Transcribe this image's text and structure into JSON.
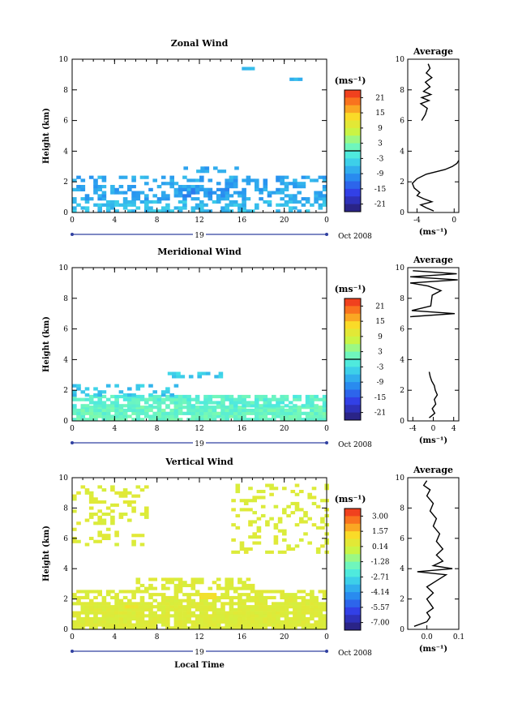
{
  "figure": {
    "xlabel": "Local Time",
    "date_label": "Oct 2008",
    "day_label": "19"
  },
  "chart_data": [
    {
      "type": "heatmap",
      "title": "Zonal Wind",
      "ylabel": "Height (km)",
      "xticks": [
        "0",
        "4",
        "8",
        "12",
        "16",
        "20",
        "0"
      ],
      "yticks": [
        "0",
        "2",
        "4",
        "6",
        "8",
        "10"
      ],
      "xlim": [
        0,
        24
      ],
      "ylim": [
        0,
        10
      ],
      "colorbar": {
        "unit": "(ms⁻¹)",
        "ticks": [
          "21",
          "15",
          "9",
          "3",
          "-3",
          "-9",
          "-15",
          "-21"
        ],
        "range": [
          -24,
          24
        ],
        "zero_line": true
      },
      "cells": [
        {
          "t0": 0,
          "t1": 24,
          "h0": 0.0,
          "h1": 0.8,
          "value": -6,
          "coverage": 0.55
        },
        {
          "t0": 0,
          "t1": 24,
          "h0": 0.8,
          "h1": 2.3,
          "value": -8,
          "coverage": 0.45
        },
        {
          "t0": 10.5,
          "t1": 15.5,
          "h0": 2.6,
          "h1": 3.0,
          "value": -8,
          "coverage": 0.6
        },
        {
          "t0": 10,
          "t1": 14.5,
          "h0": 1.0,
          "h1": 1.6,
          "value": -10,
          "coverage": 0.6
        },
        {
          "t0": 16,
          "t1": 17,
          "h0": 9.3,
          "h1": 9.5,
          "value": -6,
          "coverage": 1.0
        },
        {
          "t0": 20.5,
          "t1": 21.5,
          "h0": 8.6,
          "h1": 8.8,
          "value": -6,
          "coverage": 1.0
        }
      ],
      "average": {
        "title": "Average",
        "xlabel": "(ms⁻¹)",
        "xticks": [
          "-4",
          "0"
        ],
        "xlim": [
          -5,
          0.5
        ],
        "yticks": [
          "0",
          "2",
          "4",
          "6",
          "8",
          "10"
        ],
        "profile": [
          {
            "h": 0.1,
            "v": -2.2
          },
          {
            "h": 0.3,
            "v": -3.0
          },
          {
            "h": 0.5,
            "v": -3.6
          },
          {
            "h": 0.7,
            "v": -2.4
          },
          {
            "h": 0.9,
            "v": -3.3
          },
          {
            "h": 1.1,
            "v": -4.0
          },
          {
            "h": 1.3,
            "v": -3.7
          },
          {
            "h": 1.6,
            "v": -4.3
          },
          {
            "h": 1.9,
            "v": -4.5
          },
          {
            "h": 2.2,
            "v": -4.0
          },
          {
            "h": 2.5,
            "v": -3.0
          },
          {
            "h": 2.8,
            "v": -1.0
          },
          {
            "h": 3.0,
            "v": -0.2
          },
          {
            "h": 3.2,
            "v": 0.3
          },
          {
            "h": 3.4,
            "v": 0.5
          }
        ],
        "profile_upper": [
          {
            "h": 6.0,
            "v": -3.5
          },
          {
            "h": 6.4,
            "v": -3.1
          },
          {
            "h": 6.8,
            "v": -2.9
          },
          {
            "h": 7.1,
            "v": -3.6
          },
          {
            "h": 7.3,
            "v": -2.7
          },
          {
            "h": 7.5,
            "v": -3.5
          },
          {
            "h": 7.7,
            "v": -2.5
          },
          {
            "h": 7.9,
            "v": -3.3
          },
          {
            "h": 8.2,
            "v": -2.6
          },
          {
            "h": 8.5,
            "v": -3.1
          },
          {
            "h": 8.8,
            "v": -2.4
          },
          {
            "h": 9.1,
            "v": -3.0
          },
          {
            "h": 9.4,
            "v": -2.6
          },
          {
            "h": 9.7,
            "v": -2.8
          }
        ]
      }
    },
    {
      "type": "heatmap",
      "title": "Meridional Wind",
      "ylabel": "Height (km)",
      "xticks": [
        "0",
        "4",
        "8",
        "12",
        "16",
        "20",
        "0"
      ],
      "yticks": [
        "0",
        "2",
        "4",
        "6",
        "8",
        "10"
      ],
      "xlim": [
        0,
        24
      ],
      "ylim": [
        0,
        10
      ],
      "colorbar": {
        "unit": "(ms⁻¹)",
        "ticks": [
          "21",
          "15",
          "9",
          "3",
          "-3",
          "-9",
          "-15",
          "-21"
        ],
        "range": [
          -24,
          24
        ],
        "zero_line": true
      },
      "cells": [
        {
          "t0": 0,
          "t1": 24,
          "h0": 0.0,
          "h1": 0.9,
          "value": 1,
          "coverage": 0.9
        },
        {
          "t0": 0,
          "t1": 24,
          "h0": 0.9,
          "h1": 1.6,
          "value": 0,
          "coverage": 0.75
        },
        {
          "t0": 0,
          "t1": 10,
          "h0": 1.6,
          "h1": 2.4,
          "value": -5,
          "coverage": 0.3
        },
        {
          "t0": 9,
          "t1": 15,
          "h0": 2.8,
          "h1": 3.2,
          "value": -5,
          "coverage": 0.5
        }
      ],
      "average": {
        "title": "Average",
        "xlabel": "(ms⁻¹)",
        "xticks": [
          "-4",
          "0",
          "4"
        ],
        "xlim": [
          -5,
          5
        ],
        "yticks": [
          "0",
          "2",
          "4",
          "6",
          "8",
          "10"
        ],
        "profile": [
          {
            "h": 0.2,
            "v": -0.8
          },
          {
            "h": 0.5,
            "v": 0.3
          },
          {
            "h": 0.8,
            "v": -0.2
          },
          {
            "h": 1.1,
            "v": 0.5
          },
          {
            "h": 1.4,
            "v": 0.2
          },
          {
            "h": 1.7,
            "v": 0.8
          },
          {
            "h": 2.0,
            "v": 0.4
          },
          {
            "h": 2.3,
            "v": 0.2
          },
          {
            "h": 2.6,
            "v": -0.3
          },
          {
            "h": 2.9,
            "v": -0.6
          },
          {
            "h": 3.2,
            "v": -0.8
          }
        ],
        "profile_upper": [
          {
            "h": 6.8,
            "v": -4.5
          },
          {
            "h": 7.0,
            "v": 4.2
          },
          {
            "h": 7.2,
            "v": -4.2
          },
          {
            "h": 7.5,
            "v": -0.5
          },
          {
            "h": 8.2,
            "v": -0.2
          },
          {
            "h": 8.5,
            "v": 1.5
          },
          {
            "h": 8.8,
            "v": -1.0
          },
          {
            "h": 9.0,
            "v": -4.5
          },
          {
            "h": 9.2,
            "v": 4.8
          },
          {
            "h": 9.4,
            "v": -4.5
          },
          {
            "h": 9.6,
            "v": 4.6
          },
          {
            "h": 9.8,
            "v": -4.0
          }
        ]
      }
    },
    {
      "type": "heatmap",
      "title": "Vertical Wind",
      "ylabel": "Height (km)",
      "xticks": [
        "0",
        "4",
        "8",
        "12",
        "16",
        "20",
        "0"
      ],
      "yticks": [
        "0",
        "2",
        "4",
        "6",
        "8",
        "10"
      ],
      "xlim": [
        0,
        24
      ],
      "ylim": [
        0,
        10
      ],
      "colorbar": {
        "unit": "(ms⁻¹)",
        "ticks": [
          "3.00",
          "1.57",
          "0.14",
          "-1.28",
          "-2.71",
          "-4.14",
          "-5.57",
          "-7.00"
        ],
        "range": [
          -7.7,
          3.7
        ],
        "zero_line": false
      },
      "cells": [
        {
          "t0": 0,
          "t1": 24,
          "h0": 0.0,
          "h1": 1.8,
          "value": 0.3,
          "coverage": 0.92
        },
        {
          "t0": 0,
          "t1": 24,
          "h0": 1.8,
          "h1": 2.6,
          "value": 0.3,
          "coverage": 0.6
        },
        {
          "t0": 6,
          "t1": 17,
          "h0": 2.6,
          "h1": 3.4,
          "value": 0.3,
          "coverage": 0.55
        },
        {
          "t0": 0,
          "t1": 7,
          "h0": 5.5,
          "h1": 9.5,
          "value": 0.3,
          "coverage": 0.25
        },
        {
          "t0": 15,
          "t1": 24,
          "h0": 5.0,
          "h1": 9.5,
          "value": 0.3,
          "coverage": 0.25
        },
        {
          "t0": 12,
          "t1": 13.5,
          "h0": 2.0,
          "h1": 2.3,
          "value": 0.9,
          "coverage": 1.0
        },
        {
          "t0": 5,
          "t1": 6,
          "h0": 1.4,
          "h1": 1.6,
          "value": 0.9,
          "coverage": 1.0
        }
      ],
      "average": {
        "title": "Average",
        "xlabel": "(ms⁻¹)",
        "xticks": [
          "0.0",
          "0.1"
        ],
        "xlim": [
          -0.06,
          0.1
        ],
        "yticks": [
          "0",
          "2",
          "4",
          "6",
          "8",
          "10"
        ],
        "profile": [
          {
            "h": 0.2,
            "v": -0.04
          },
          {
            "h": 0.5,
            "v": 0.0
          },
          {
            "h": 0.8,
            "v": 0.01
          },
          {
            "h": 1.1,
            "v": 0.0
          },
          {
            "h": 1.4,
            "v": 0.02
          },
          {
            "h": 1.7,
            "v": 0.01
          },
          {
            "h": 2.0,
            "v": 0.0
          },
          {
            "h": 2.4,
            "v": 0.02
          },
          {
            "h": 2.8,
            "v": 0.0
          },
          {
            "h": 3.2,
            "v": 0.03
          },
          {
            "h": 3.6,
            "v": 0.06
          },
          {
            "h": 3.8,
            "v": -0.03
          },
          {
            "h": 4.0,
            "v": 0.08
          },
          {
            "h": 4.2,
            "v": 0.02
          },
          {
            "h": 4.5,
            "v": 0.05
          },
          {
            "h": 4.9,
            "v": 0.03
          },
          {
            "h": 5.3,
            "v": 0.05
          },
          {
            "h": 5.8,
            "v": 0.03
          },
          {
            "h": 6.3,
            "v": 0.04
          },
          {
            "h": 6.8,
            "v": 0.02
          },
          {
            "h": 7.3,
            "v": 0.03
          },
          {
            "h": 7.8,
            "v": 0.01
          },
          {
            "h": 8.3,
            "v": 0.02
          },
          {
            "h": 8.8,
            "v": 0.0
          },
          {
            "h": 9.2,
            "v": 0.01
          },
          {
            "h": 9.5,
            "v": -0.01
          },
          {
            "h": 9.8,
            "v": 0.0
          }
        ],
        "profile_upper": []
      }
    }
  ]
}
